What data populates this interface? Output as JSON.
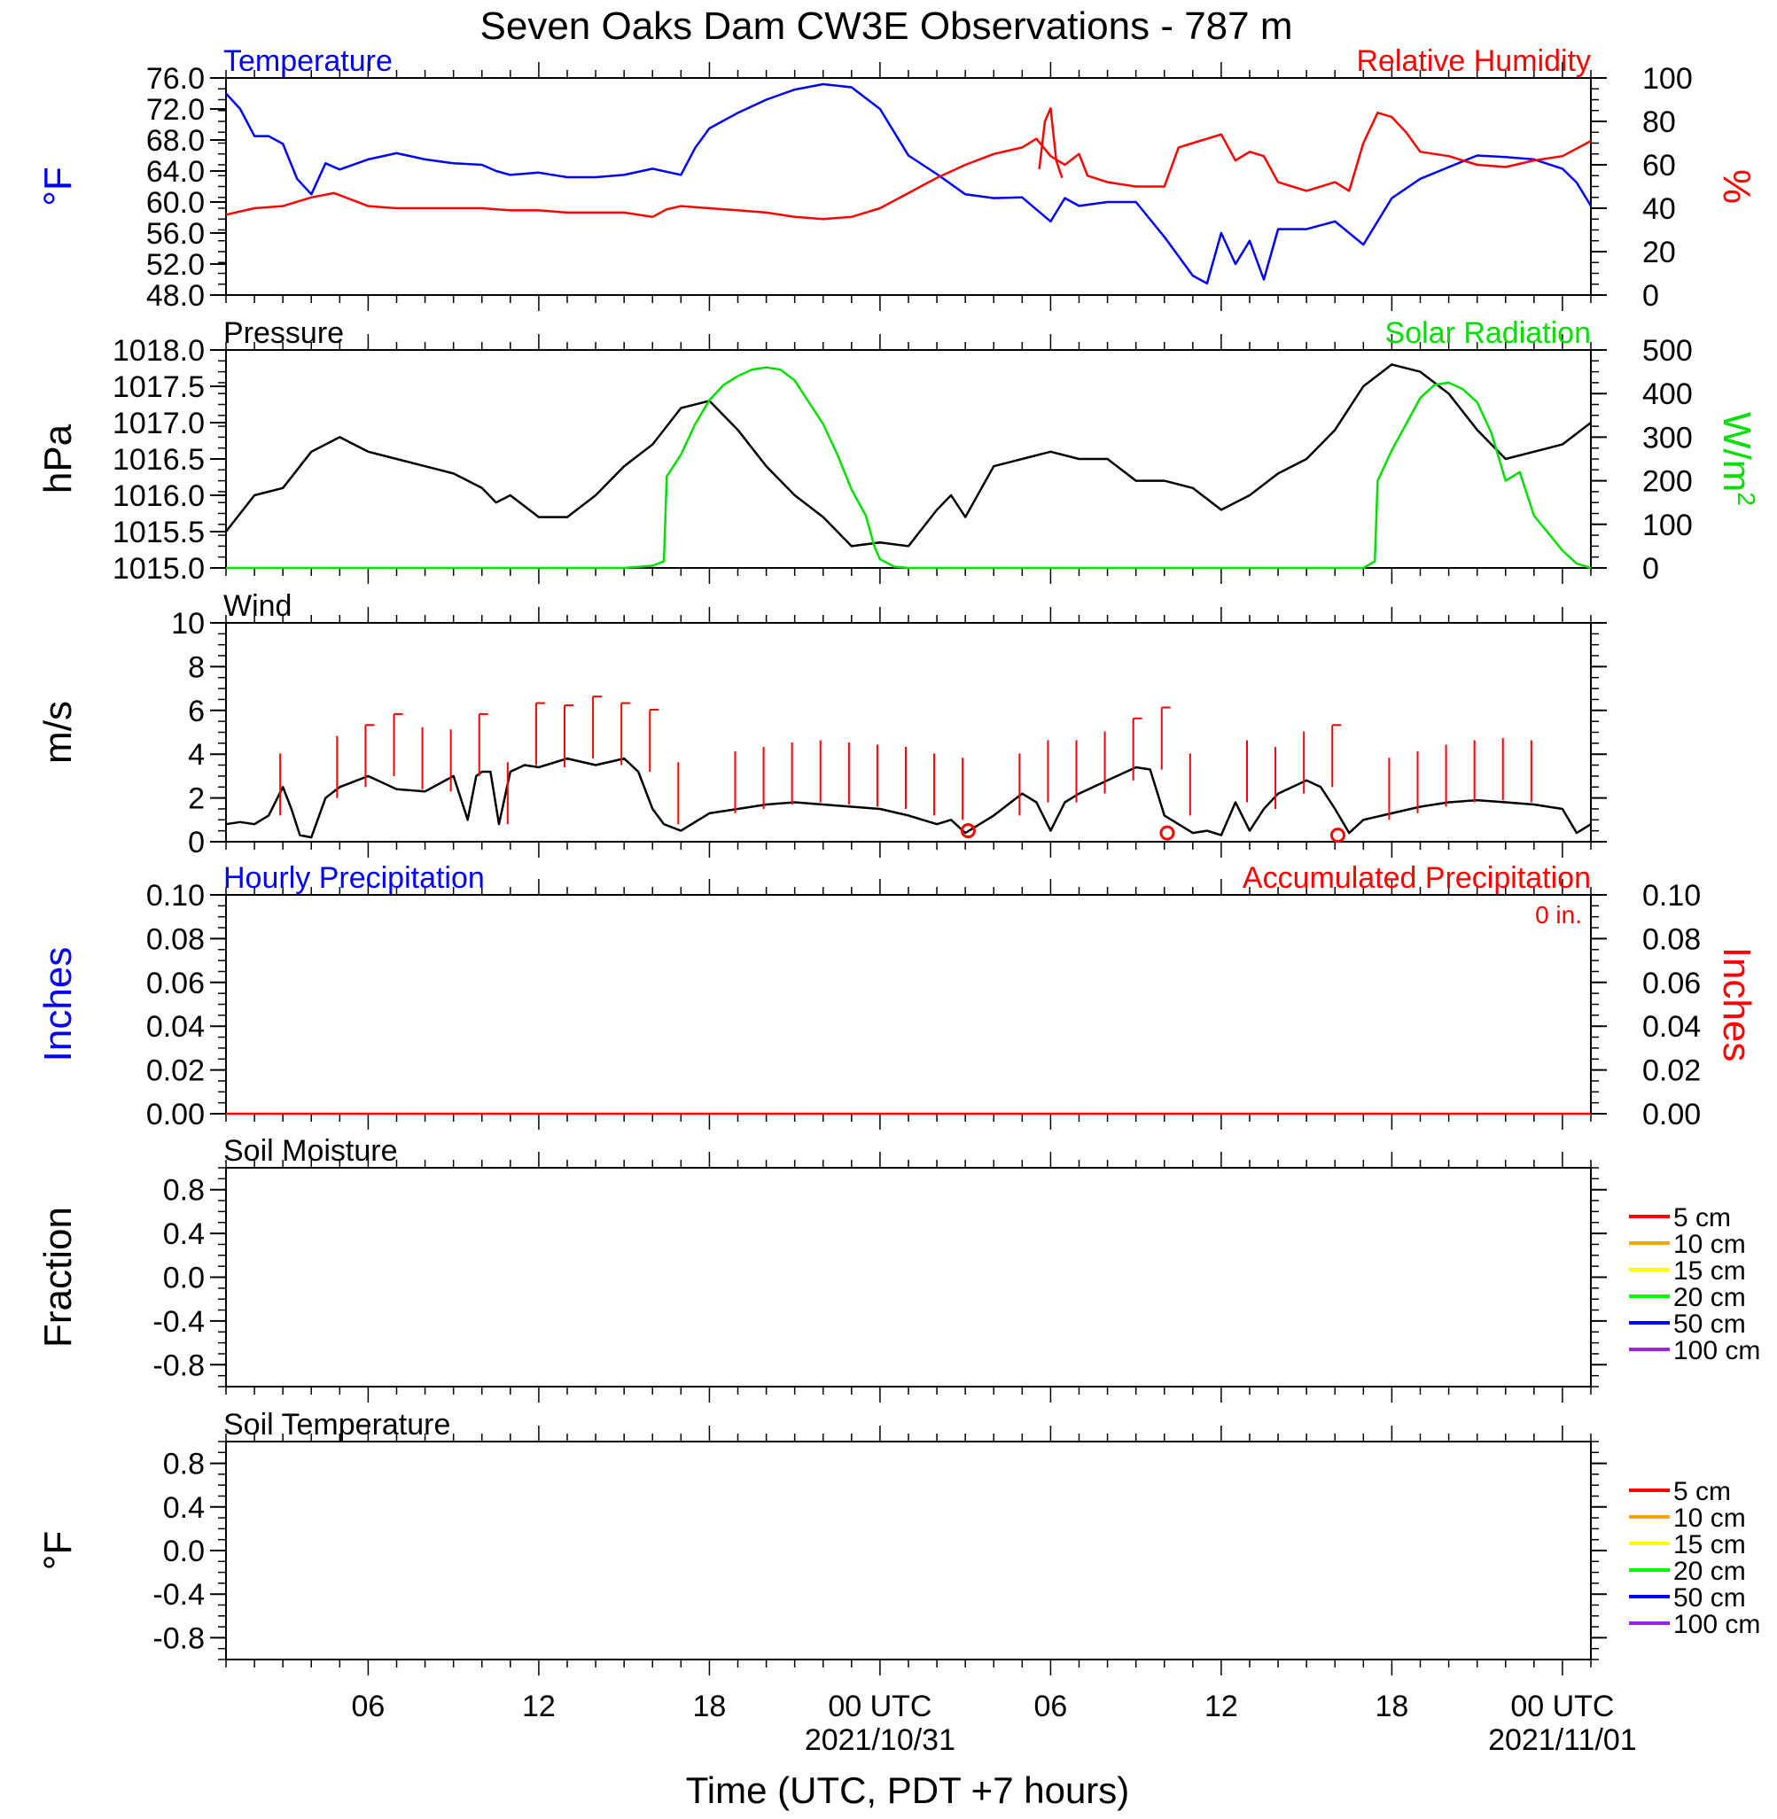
{
  "title": "Seven Oaks Dam CW3E Observations - 787 m",
  "xlabel": "Time (UTC, PDT +7 hours)",
  "x_ticks": [
    {
      "h": 6,
      "label": "06",
      "date": ""
    },
    {
      "h": 12,
      "label": "12",
      "date": ""
    },
    {
      "h": 18,
      "label": "18",
      "date": ""
    },
    {
      "h": 24,
      "label": "00 UTC",
      "date": "2021/10/31"
    },
    {
      "h": 30,
      "label": "06",
      "date": ""
    },
    {
      "h": 36,
      "label": "12",
      "date": ""
    },
    {
      "h": 42,
      "label": "18",
      "date": ""
    },
    {
      "h": 48,
      "label": "00 UTC",
      "date": "2021/11/01"
    }
  ],
  "colors": {
    "temperature": "#0000ff",
    "humidity": "#ff0000",
    "pressure": "#000000",
    "solar": "#00e000",
    "wind": "#000000",
    "barb": "#ff0000"
  },
  "chart_data": [
    {
      "type": "line",
      "title_left": "Temperature",
      "title_right": "Relative Humidity",
      "ylabel_left": "°F",
      "ylabel_right": "%",
      "ylim_left": [
        48,
        76
      ],
      "yticks_left": [
        "48.0",
        "52.0",
        "56.0",
        "60.0",
        "64.0",
        "68.0",
        "72.0",
        "76.0"
      ],
      "ylim_right": [
        0,
        100
      ],
      "yticks_right": [
        "0",
        "20",
        "40",
        "60",
        "80",
        "100"
      ],
      "xlim": [
        1,
        49
      ],
      "series": [
        {
          "axis": "left",
          "color": "#0000ff",
          "x": [
            1,
            1.5,
            2,
            2.5,
            3,
            3.5,
            4,
            4.5,
            5,
            6,
            7,
            8,
            9,
            10,
            10.5,
            11,
            12,
            13,
            14,
            15,
            16,
            17,
            17.5,
            18,
            19,
            20,
            21,
            22,
            23,
            24,
            25,
            26,
            27,
            28,
            29,
            30,
            30.5,
            31,
            32,
            33,
            34,
            35,
            35.5,
            36,
            36.5,
            37,
            37.5,
            38,
            39,
            40,
            40.5,
            41,
            42,
            43,
            44,
            45,
            46,
            47,
            48,
            48.5,
            49
          ],
          "y": [
            74,
            72,
            68.5,
            68.5,
            67.5,
            63,
            61,
            65,
            64.2,
            65.5,
            66.3,
            65.5,
            65,
            64.8,
            64,
            63.5,
            63.8,
            63.2,
            63.2,
            63.5,
            64.3,
            63.5,
            67,
            69.5,
            71.5,
            73.2,
            74.5,
            75.2,
            74.8,
            72,
            66,
            63.6,
            61,
            60.5,
            60.6,
            57.5,
            60.5,
            59.5,
            60,
            60,
            55.5,
            50.5,
            49.5,
            56,
            52,
            55,
            50,
            56.5,
            56.5,
            57.5,
            56,
            54.5,
            60.5,
            63,
            64.5,
            66,
            65.8,
            65.5,
            64.3,
            62.5,
            59.5
          ]
        },
        {
          "axis": "right",
          "color": "#ff0000",
          "x": [
            1,
            2,
            3,
            4,
            4.8,
            5,
            6,
            7,
            8,
            9,
            10,
            11,
            12,
            13,
            14,
            15,
            16,
            16.5,
            17,
            18,
            19,
            20,
            21,
            22,
            23,
            24,
            25,
            26,
            27,
            28,
            29,
            29.5,
            30,
            30.5,
            31,
            31.3,
            32,
            33,
            34,
            34.5,
            35,
            36,
            36.5,
            37,
            37.5,
            38,
            39,
            40,
            40.5,
            41,
            41.5,
            42,
            42.5,
            43,
            44,
            45,
            46,
            47,
            48,
            49
          ],
          "y": [
            37,
            40,
            41,
            45,
            47,
            46,
            41,
            40,
            40,
            40,
            40,
            39,
            39,
            38,
            38,
            38,
            36,
            39.5,
            41,
            40,
            39,
            38,
            36,
            35,
            36,
            40,
            47,
            54,
            60,
            65,
            68,
            72,
            64,
            60,
            65,
            55,
            52,
            50,
            50,
            68,
            70,
            74,
            62,
            66,
            64,
            52,
            48,
            52,
            48,
            70,
            84,
            82,
            75,
            66,
            64,
            60,
            59,
            62,
            64,
            71
          ]
        },
        {
          "axis": "right",
          "color": "#ff0000",
          "x": [
            29.6,
            29.8,
            30,
            30.2,
            30.4
          ],
          "y": [
            58,
            80,
            86,
            62,
            54
          ]
        }
      ]
    },
    {
      "type": "line",
      "title_left": "Pressure",
      "title_right": "Solar Radiation",
      "ylabel_left": "hPa",
      "ylabel_right": "W/m",
      "ylabel_right_sup": "2",
      "ylim_left": [
        1015,
        1018
      ],
      "yticks_left": [
        "1015.0",
        "1015.5",
        "1016.0",
        "1016.5",
        "1017.0",
        "1017.5",
        "1018.0"
      ],
      "ylim_right": [
        0,
        500
      ],
      "yticks_right": [
        "0",
        "100",
        "200",
        "300",
        "400",
        "500"
      ],
      "xlim": [
        1,
        49
      ],
      "series": [
        {
          "axis": "left",
          "color": "#000000",
          "x": [
            1,
            2,
            3,
            4,
            5,
            6,
            7,
            8,
            9,
            10,
            10.5,
            11,
            12,
            13,
            14,
            15,
            16,
            17,
            18,
            19,
            20,
            21,
            22,
            23,
            24,
            25,
            26,
            26.5,
            27,
            28,
            29,
            30,
            31,
            32,
            33,
            34,
            35,
            36,
            37,
            38,
            39,
            40,
            41,
            42,
            43,
            44,
            45,
            46,
            47,
            48,
            49
          ],
          "y": [
            1015.5,
            1016,
            1016.1,
            1016.6,
            1016.8,
            1016.6,
            1016.5,
            1016.4,
            1016.3,
            1016.1,
            1015.9,
            1016,
            1015.7,
            1015.7,
            1016,
            1016.4,
            1016.7,
            1017.2,
            1017.3,
            1016.9,
            1016.4,
            1016,
            1015.7,
            1015.3,
            1015.35,
            1015.3,
            1015.8,
            1016,
            1015.7,
            1016.4,
            1016.5,
            1016.6,
            1016.5,
            1016.5,
            1016.2,
            1016.2,
            1016.1,
            1015.8,
            1016,
            1016.3,
            1016.5,
            1016.9,
            1017.5,
            1017.8,
            1017.7,
            1017.4,
            1016.9,
            1016.5,
            1016.6,
            1016.7,
            1017
          ]
        },
        {
          "axis": "right",
          "color": "#00e000",
          "x": [
            1,
            15,
            16,
            16.4,
            16.5,
            17,
            17.5,
            18,
            18.5,
            19,
            19.5,
            20,
            20.5,
            21,
            21.5,
            22,
            22.5,
            23,
            23.5,
            23.8,
            24,
            24.5,
            25,
            41,
            41.4,
            41.5,
            42,
            42.5,
            43,
            43.5,
            44,
            44.5,
            45,
            45.5,
            46,
            46.5,
            47,
            47.5,
            48,
            48.5,
            49
          ],
          "y": [
            0,
            0,
            5,
            15,
            210,
            260,
            330,
            385,
            420,
            440,
            455,
            460,
            455,
            430,
            380,
            330,
            260,
            180,
            120,
            50,
            20,
            3,
            0,
            0,
            15,
            200,
            270,
            330,
            390,
            420,
            425,
            410,
            380,
            310,
            200,
            220,
            120,
            80,
            40,
            10,
            0
          ]
        }
      ]
    },
    {
      "type": "line",
      "title_left": "Wind",
      "ylabel_left": "m/s",
      "ylim_left": [
        0,
        10
      ],
      "yticks_left": [
        "0",
        "2",
        "4",
        "6",
        "8",
        "10"
      ],
      "xlim": [
        1,
        49
      ],
      "series": [
        {
          "axis": "left",
          "color": "#000000",
          "x": [
            1,
            1.5,
            2,
            2.5,
            3,
            3.3,
            3.6,
            4,
            4.5,
            5,
            6,
            7,
            8,
            9,
            9.5,
            9.8,
            10,
            10.3,
            10.6,
            11,
            11.5,
            12,
            13,
            14,
            15,
            15.5,
            16,
            16.4,
            17,
            18,
            19,
            20,
            21,
            22,
            23,
            24,
            25,
            26,
            26.5,
            27,
            28,
            29,
            29.5,
            30,
            30.5,
            31,
            32,
            33,
            33.5,
            34,
            35,
            35.5,
            36,
            36.5,
            37,
            37.5,
            38,
            39,
            39.5,
            40,
            40.5,
            41,
            42,
            43,
            44,
            45,
            46,
            47,
            48,
            48.5,
            49
          ],
          "y": [
            0.8,
            0.9,
            0.8,
            1.2,
            2.5,
            1.5,
            0.3,
            0.2,
            2,
            2.5,
            3,
            2.4,
            2.3,
            3,
            1,
            3,
            3.2,
            3.2,
            0.8,
            3.2,
            3.5,
            3.4,
            3.8,
            3.5,
            3.8,
            3.2,
            1.5,
            0.8,
            0.5,
            1.3,
            1.5,
            1.7,
            1.8,
            1.7,
            1.6,
            1.5,
            1.2,
            0.8,
            1,
            0.4,
            1.2,
            2.2,
            1.8,
            0.5,
            1.8,
            2.2,
            2.8,
            3.4,
            3.3,
            1.2,
            0.4,
            0.5,
            0.3,
            1.8,
            0.5,
            1.5,
            2.2,
            2.8,
            2.5,
            1.5,
            0.4,
            1,
            1.3,
            1.6,
            1.8,
            1.9,
            1.8,
            1.7,
            1.5,
            0.4,
            0.8
          ]
        }
      ],
      "calm_x": [
        27.1,
        34.1,
        40.1
      ],
      "calm_y": [
        0.5,
        0.4,
        0.3
      ]
    },
    {
      "type": "line",
      "title_left": "Hourly Precipitation",
      "title_right": "Accumulated Precipitation",
      "annotation": "0 in.",
      "ylabel_left": "Inches",
      "ylabel_right": "Inches",
      "ylim_left": [
        0,
        0.1
      ],
      "yticks_left": [
        "0.00",
        "0.02",
        "0.04",
        "0.06",
        "0.08",
        "0.10"
      ],
      "ylim_right": [
        0,
        0.1
      ],
      "yticks_right": [
        "0.00",
        "0.02",
        "0.04",
        "0.06",
        "0.08",
        "0.10"
      ],
      "xlim": [
        1,
        49
      ],
      "series": [
        {
          "axis": "left",
          "color": "#ff0000",
          "x": [
            1,
            49
          ],
          "y": [
            0,
            0
          ]
        }
      ]
    },
    {
      "type": "line",
      "title_left": "Soil Moisture",
      "ylabel_left": "Fraction",
      "ylim_left": [
        -1,
        1
      ],
      "yticks_left": [
        "-0.8",
        "-0.4",
        "0.0",
        "0.4",
        "0.8"
      ],
      "xlim": [
        1,
        49
      ],
      "legend": [
        {
          "name": "5 cm",
          "color": "#ff0000"
        },
        {
          "name": "10 cm",
          "color": "#ffa500"
        },
        {
          "name": "15 cm",
          "color": "#ffff00"
        },
        {
          "name": "20 cm",
          "color": "#00ff00"
        },
        {
          "name": "50 cm",
          "color": "#0000ff"
        },
        {
          "name": "100 cm",
          "color": "#a020f0"
        }
      ],
      "series": []
    },
    {
      "type": "line",
      "title_left": "Soil Temperature",
      "ylabel_left": "°F",
      "ylim_left": [
        -1,
        1
      ],
      "yticks_left": [
        "-0.8",
        "-0.4",
        "0.0",
        "0.4",
        "0.8"
      ],
      "xlim": [
        1,
        49
      ],
      "legend": [
        {
          "name": "5 cm",
          "color": "#ff0000"
        },
        {
          "name": "10 cm",
          "color": "#ffa500"
        },
        {
          "name": "15 cm",
          "color": "#ffff00"
        },
        {
          "name": "20 cm",
          "color": "#00ff00"
        },
        {
          "name": "50 cm",
          "color": "#0000ff"
        },
        {
          "name": "100 cm",
          "color": "#a020f0"
        }
      ],
      "series": []
    }
  ]
}
